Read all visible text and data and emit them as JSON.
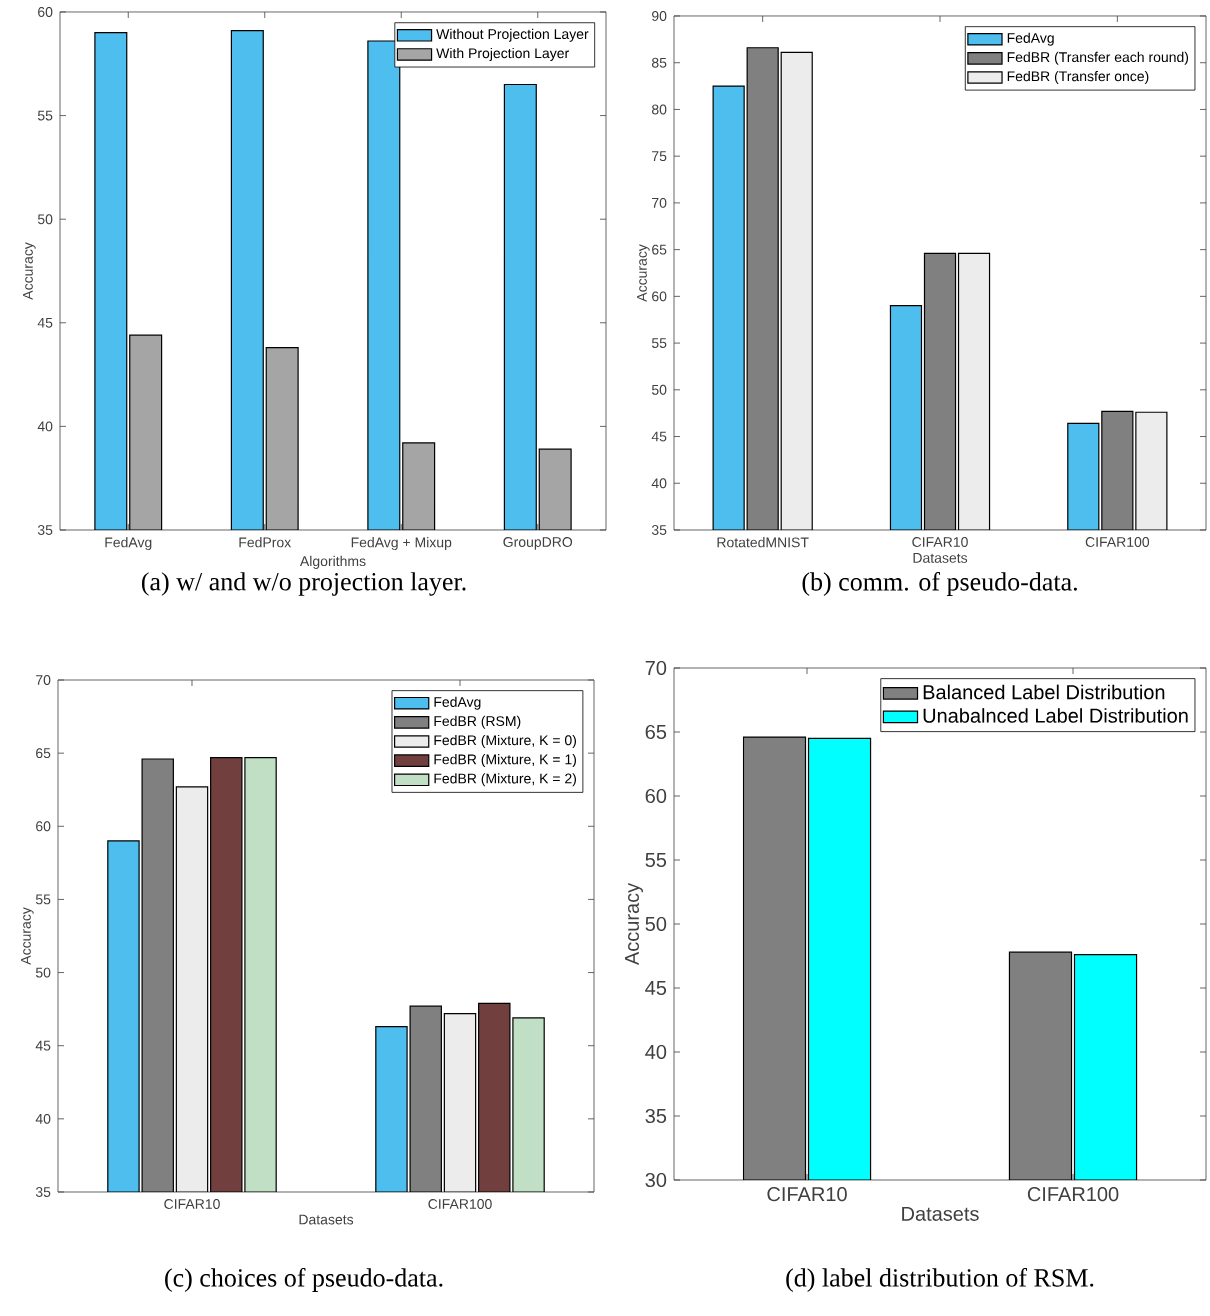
{
  "chart_data": [
    {
      "type": "bar",
      "xlabel": "Algorithms",
      "ylabel": "Accuracy",
      "categories": [
        "FedAvg",
        "FedProx",
        "FedAvg + Mixup",
        "GroupDRO"
      ],
      "ylim": [
        35,
        60
      ],
      "yticks": [
        35,
        40,
        45,
        50,
        55,
        60
      ],
      "legend": "top right",
      "series": [
        {
          "name": "Without Projection Layer",
          "color": "#4dbeee",
          "values": [
            59.0,
            59.1,
            58.6,
            56.5
          ]
        },
        {
          "name": "With Projection Layer",
          "color": "#a5a5a5",
          "values": [
            44.4,
            43.8,
            39.2,
            38.9
          ]
        }
      ],
      "annotations": [
        "(a) w/ and w/o projection layer."
      ]
    },
    {
      "type": "bar",
      "xlabel": "Datasets",
      "ylabel": "Accuracy",
      "categories": [
        "RotatedMNIST",
        "CIFAR10",
        "CIFAR100"
      ],
      "ylim": [
        35,
        90
      ],
      "yticks": [
        35,
        40,
        45,
        50,
        55,
        60,
        65,
        70,
        75,
        80,
        85,
        90
      ],
      "legend": "top right",
      "series": [
        {
          "name": "FedAvg",
          "color": "#4dbeee",
          "values": [
            82.5,
            59.0,
            46.4
          ]
        },
        {
          "name": "FedBR (Transfer each round)",
          "color": "#808080",
          "values": [
            86.6,
            64.6,
            47.7
          ]
        },
        {
          "name": "FedBR (Transfer once)",
          "color": "#ececec",
          "values": [
            86.1,
            64.6,
            47.6
          ]
        }
      ],
      "annotations": [
        "(b) comm. of pseudo-data."
      ]
    },
    {
      "type": "bar",
      "xlabel": "Datasets",
      "ylabel": "Accuracy",
      "categories": [
        "CIFAR10",
        "CIFAR100"
      ],
      "ylim": [
        35,
        70
      ],
      "yticks": [
        35,
        40,
        45,
        50,
        55,
        60,
        65,
        70
      ],
      "legend": "top right",
      "series": [
        {
          "name": "FedAvg",
          "color": "#4dbeee",
          "values": [
            59.0,
            46.3
          ]
        },
        {
          "name": "FedBR (RSM)",
          "color": "#808080",
          "values": [
            64.6,
            47.7
          ]
        },
        {
          "name": "FedBR (Mixture, K = 0)",
          "color": "#ececec",
          "values": [
            62.7,
            47.2
          ]
        },
        {
          "name": "FedBR (Mixture, K = 1)",
          "color": "#723f3f",
          "values": [
            64.7,
            47.9
          ]
        },
        {
          "name": "FedBR (Mixture, K = 2)",
          "color": "#c1dfc5",
          "values": [
            64.7,
            46.9
          ]
        }
      ],
      "annotations": [
        "(c) choices of pseudo-data."
      ]
    },
    {
      "type": "bar",
      "xlabel": "Datasets",
      "ylabel": "Accuracy",
      "categories": [
        "CIFAR10",
        "CIFAR100"
      ],
      "ylim": [
        30,
        70
      ],
      "yticks": [
        30,
        35,
        40,
        45,
        50,
        55,
        60,
        65,
        70
      ],
      "legend": "top right",
      "series": [
        {
          "name": "Balanced Label Distribution",
          "color": "#808080",
          "values": [
            64.6,
            47.8
          ]
        },
        {
          "name": "Unabalnced Label Distribution",
          "color": "#00ffff",
          "values": [
            64.5,
            47.6
          ]
        }
      ],
      "annotations": [
        "(d) label distribution of RSM."
      ]
    }
  ]
}
